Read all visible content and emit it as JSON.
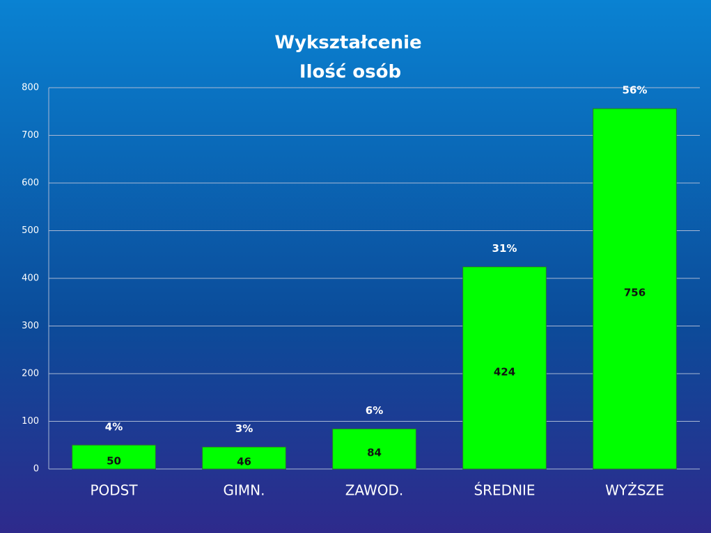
{
  "chart_data": {
    "type": "bar",
    "title": "Wykształcenie",
    "subtitle": "Ilość osób",
    "categories": [
      "PODST",
      "GIMN.",
      "ZAWOD.",
      "ŚREDNIE",
      "WYŻSZE"
    ],
    "values": [
      50,
      46,
      84,
      424,
      756
    ],
    "percent_labels": [
      "4%",
      "3%",
      "6%",
      "31%",
      "56%"
    ],
    "color": "#00ff00",
    "ylim": [
      0,
      800
    ],
    "yticks": [
      0,
      100,
      200,
      300,
      400,
      500,
      600,
      700,
      800
    ],
    "grid": true
  }
}
